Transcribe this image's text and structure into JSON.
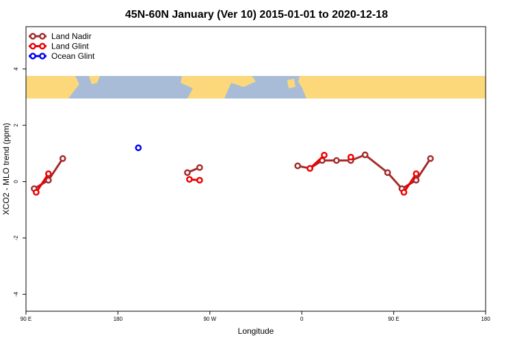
{
  "chart_data": {
    "type": "line",
    "title": "45N-60N January (Ver 10)   2015-01-01 to 2020-12-18",
    "xlabel": "Longitude",
    "ylabel": "XCO2 - MLO trend (ppm)",
    "x_axis": {
      "ticks": [
        {
          "label": "90 E"
        },
        {
          "label": "180"
        },
        {
          "label": "90 W"
        },
        {
          "label": "0"
        },
        {
          "label": "90 E"
        },
        {
          "label": "180"
        }
      ]
    },
    "y_axis": {
      "ticks": [
        {
          "value": -4,
          "label": "-4"
        },
        {
          "value": -2,
          "label": "-2"
        },
        {
          "value": 0,
          "label": "0"
        },
        {
          "value": 2,
          "label": "2"
        },
        {
          "value": 4,
          "label": "4"
        }
      ],
      "range": [
        -4.6,
        5.5
      ]
    },
    "x_range_degrees_unwrapped": [
      90,
      540
    ],
    "map_strip": {
      "y_range": [
        2.95,
        3.75
      ],
      "ocean_color": "#a8bcd8",
      "land_color": "#fcd87a"
    },
    "legend": {
      "position": "top-left",
      "entries": [
        {
          "label": "Land Nadir",
          "color": "#a52a2a"
        },
        {
          "label": "Land Glint",
          "color": "#ee0000"
        },
        {
          "label": "Ocean Glint",
          "color": "#0000ee"
        }
      ]
    },
    "series": [
      {
        "name": "Land Nadir",
        "color": "#a52a2a",
        "segments": [
          [
            [
              98,
              -0.25
            ],
            [
              112,
              0.05
            ],
            [
              126,
              0.82
            ]
          ],
          [
            [
              248,
              0.32
            ],
            [
              260,
              0.5
            ]
          ],
          [
            [
              356,
              0.56
            ],
            [
              368,
              0.47
            ],
            [
              380,
              0.75
            ],
            [
              394,
              0.75
            ],
            [
              408,
              0.75
            ],
            [
              422,
              0.95
            ],
            [
              444,
              0.32
            ],
            [
              458,
              -0.25
            ],
            [
              472,
              0.05
            ],
            [
              486,
              0.82
            ]
          ]
        ]
      },
      {
        "name": "Land Glint",
        "color": "#ee0000",
        "segments": [
          [
            [
              100,
              -0.38
            ],
            [
              112,
              0.28
            ]
          ],
          [
            [
              250,
              0.08
            ],
            [
              260,
              0.05
            ]
          ],
          [
            [
              368,
              0.47
            ],
            [
              382,
              0.94
            ]
          ],
          [
            [
              408,
              0.87
            ]
          ],
          [
            [
              460,
              -0.38
            ],
            [
              472,
              0.28
            ]
          ]
        ]
      },
      {
        "name": "Ocean Glint",
        "color": "#0000ee",
        "segments": [
          [
            [
              200,
              1.2
            ]
          ]
        ]
      }
    ]
  }
}
